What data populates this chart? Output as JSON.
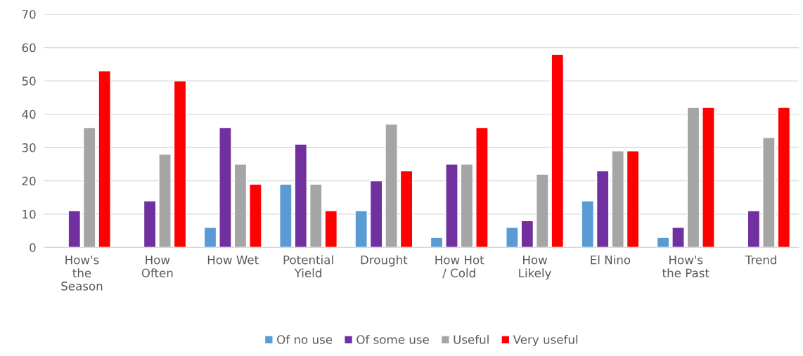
{
  "chart_data": {
    "type": "bar",
    "categories": [
      "How's\nthe\nSeason",
      "How\nOften",
      "How Wet",
      "Potential\nYield",
      "Drought",
      "How Hot\n/ Cold",
      "How\nLikely",
      "El Nino",
      "How's\nthe Past",
      "Trend"
    ],
    "series": [
      {
        "name": "Of no use",
        "color": "#5b9bd5",
        "values": [
          null,
          null,
          6,
          19,
          11,
          3,
          6,
          14,
          3,
          null
        ]
      },
      {
        "name": "Of some use",
        "color": "#7030a0",
        "values": [
          11,
          14,
          36,
          31,
          20,
          25,
          8,
          23,
          6,
          11
        ]
      },
      {
        "name": "Useful",
        "color": "#a5a5a5",
        "values": [
          36,
          28,
          25,
          19,
          37,
          25,
          22,
          29,
          42,
          33
        ]
      },
      {
        "name": "Very useful",
        "color": "#ff0000",
        "values": [
          53,
          50,
          19,
          11,
          23,
          36,
          58,
          29,
          42,
          42
        ]
      }
    ],
    "ylim": [
      0,
      70
    ],
    "yticks": [
      0,
      10,
      20,
      30,
      40,
      50,
      60,
      70
    ],
    "grid": "y",
    "legend": "bottom"
  }
}
